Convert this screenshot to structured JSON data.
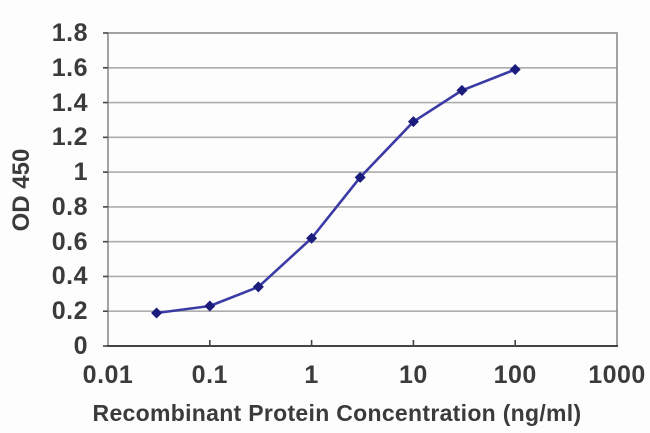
{
  "chart_data": {
    "type": "line",
    "title": "",
    "xlabel": "Recombinant Protein Concentration (ng/ml)",
    "ylabel": "OD 450",
    "x_scale": "log",
    "y_scale": "linear",
    "xlim": [
      0.01,
      1000
    ],
    "ylim": [
      0,
      1.8
    ],
    "x": [
      0.03,
      0.1,
      0.3,
      1,
      3,
      10,
      30,
      100
    ],
    "y": [
      0.19,
      0.23,
      0.34,
      0.62,
      0.97,
      1.29,
      1.47,
      1.59
    ],
    "x_ticks": [
      0.01,
      0.1,
      1,
      10,
      100,
      1000
    ],
    "x_tick_labels": [
      "0.01",
      "0.1",
      "1",
      "10",
      "100",
      "1000"
    ],
    "y_ticks": [
      0,
      0.2,
      0.4,
      0.6,
      0.8,
      1,
      1.2,
      1.4,
      1.6,
      1.8
    ],
    "y_tick_labels": [
      "0",
      "0.2",
      "0.4",
      "0.6",
      "0.8",
      "1",
      "1.2",
      "1.4",
      "1.6",
      "1.8"
    ],
    "grid": "horizontal-only",
    "legend": "none",
    "marker": "diamond",
    "colors": {
      "line": "#3b3ba6",
      "marker": "#1c1c7d",
      "grid": "#adadad",
      "border": "#8c8c8c",
      "axis": "#454545",
      "text": "#3b3b3b",
      "background": "#fdfdfd"
    }
  }
}
